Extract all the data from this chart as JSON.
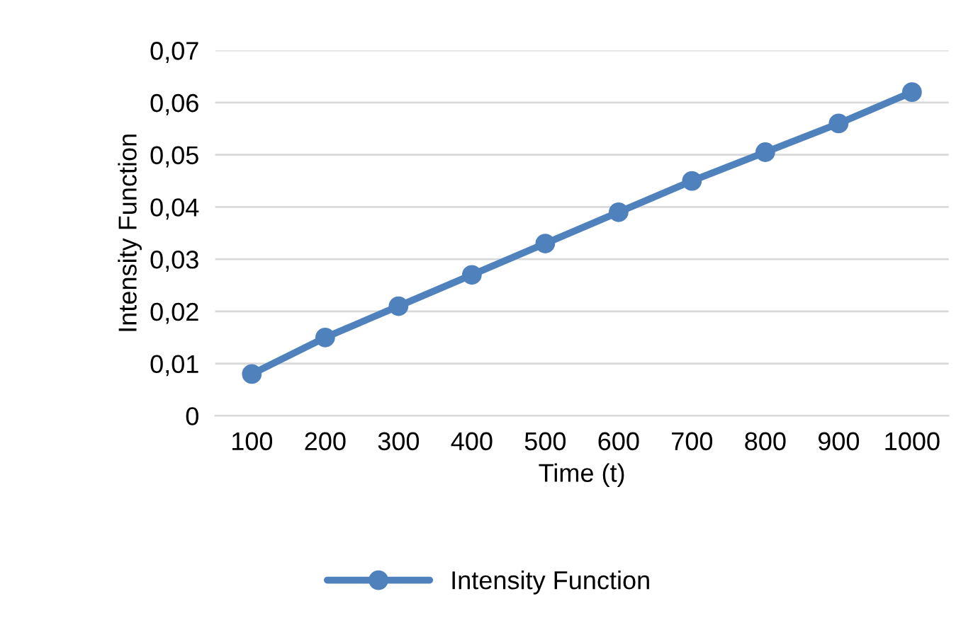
{
  "chart_data": {
    "type": "line",
    "xlabel": "Time (t)",
    "ylabel": "Intensity Function",
    "categories": [
      "100",
      "200",
      "300",
      "400",
      "500",
      "600",
      "700",
      "800",
      "900",
      "1000"
    ],
    "series": [
      {
        "name": "Intensity Function",
        "color": "#4f81bd",
        "values": [
          0.008,
          0.015,
          0.021,
          0.027,
          0.033,
          0.039,
          0.045,
          0.0505,
          0.056,
          0.062
        ]
      }
    ],
    "ylim": [
      0,
      0.07
    ],
    "yticks": [
      0,
      {
        "value": 0.01,
        "label": "0,01"
      },
      {
        "value": 0.02,
        "label": "0,02"
      },
      {
        "value": 0.03,
        "label": "0,03"
      },
      {
        "value": 0.04,
        "label": "0,04"
      },
      {
        "value": 0.05,
        "label": "0,05"
      },
      {
        "value": 0.06,
        "label": "0,06"
      },
      {
        "value": 0.07,
        "label": "0,07"
      }
    ],
    "grid": "y",
    "legend": "bottom",
    "marker": "circle",
    "line_style": "solid"
  }
}
